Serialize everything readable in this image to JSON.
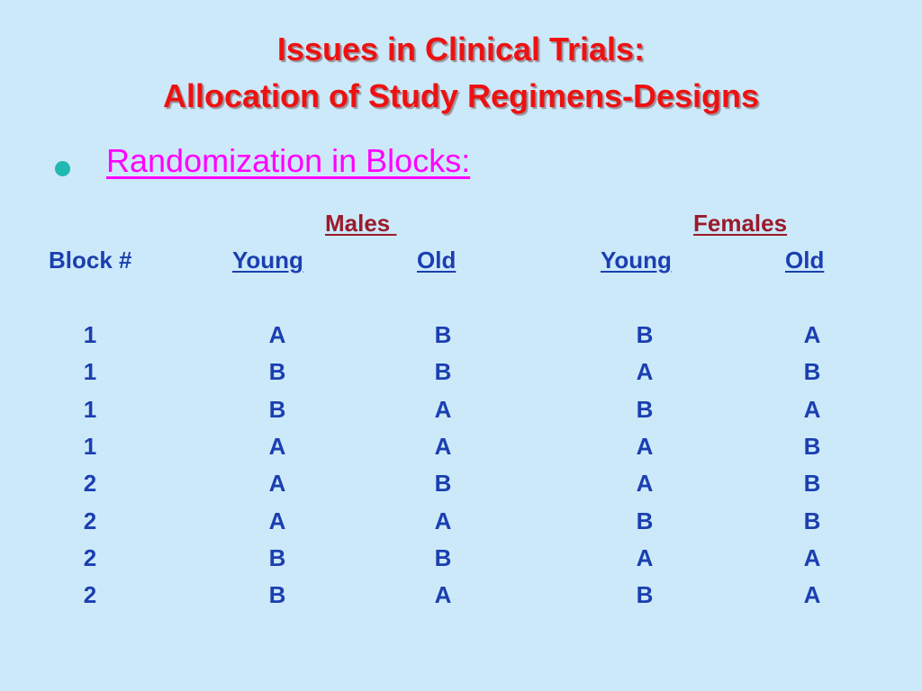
{
  "slide": {
    "title_line1": "Issues in Clinical Trials:",
    "title_line2": "Allocation of Study Regimens-Designs",
    "bullet_icon": "circle-bullet-icon",
    "bullet_text": "Randomization in Blocks:",
    "colors": {
      "background": "#cce9fa",
      "title": "#ee1111",
      "bullet_text": "#ff00ff",
      "bullet_dot": "#20b8b0",
      "group_headers": "#9b1b2b",
      "table_text": "#1b3fb0"
    }
  },
  "table": {
    "group_headers": {
      "males": "Males ",
      "females": "Females"
    },
    "column_headers": {
      "block": "Block #",
      "males_young": "Young",
      "males_old": "Old",
      "females_young": "Young",
      "females_old": "Old"
    },
    "rows": [
      [
        "1",
        "A",
        "B",
        "B",
        "A"
      ],
      [
        "1",
        "B",
        "B",
        "A",
        "B"
      ],
      [
        "1",
        "B",
        "A",
        "B",
        "A"
      ],
      [
        "1",
        "A",
        "A",
        "A",
        "B"
      ],
      [
        "2",
        "A",
        "B",
        "A",
        "B"
      ],
      [
        "2",
        "A",
        "A",
        "B",
        "B"
      ],
      [
        "2",
        "B",
        "B",
        "A",
        "A"
      ],
      [
        "2",
        "B",
        "A",
        "B",
        "A"
      ]
    ]
  }
}
